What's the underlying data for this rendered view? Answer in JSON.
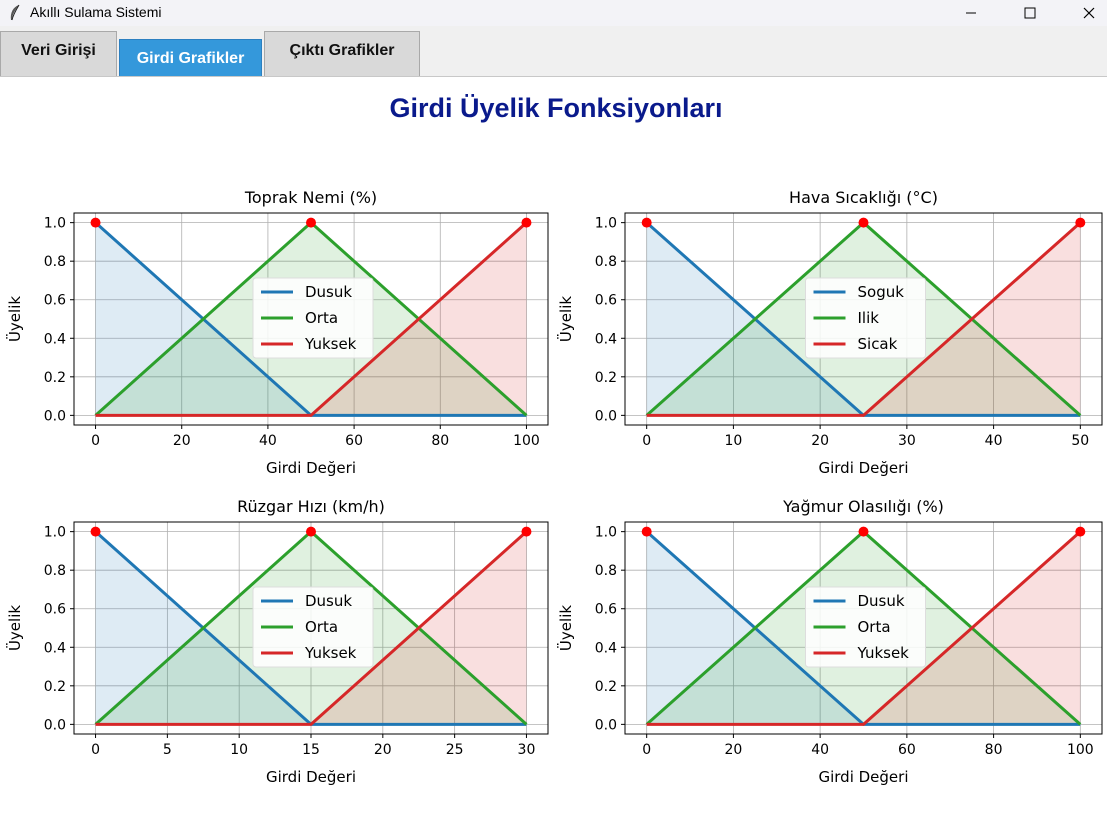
{
  "window": {
    "title": "Akıllı Sulama Sistemi",
    "app_icon": "feather-icon",
    "controls": [
      "minimize-icon",
      "maximize-icon",
      "close-icon"
    ]
  },
  "tabs": [
    {
      "label": "Veri Girişi",
      "active": false
    },
    {
      "label": "Girdi Grafikler",
      "active": true
    },
    {
      "label": "Çıktı Grafikler",
      "active": false
    }
  ],
  "page_title": "Girdi Üyelik Fonksiyonları",
  "colors": {
    "low": "#1f77b4",
    "mid": "#2ca02c",
    "high": "#d62728",
    "title": "#0a1a8c",
    "active_tab": "#3498db"
  },
  "chart_data": [
    {
      "type": "line",
      "title": "Toprak Nemi (%)",
      "xlabel": "Girdi Değeri",
      "ylabel": "Üyelik",
      "xlim": [
        -5,
        105
      ],
      "ylim": [
        -0.05,
        1.05
      ],
      "xticks": [
        0,
        20,
        40,
        60,
        80,
        100
      ],
      "yticks": [
        "0.0",
        "0.2",
        "0.4",
        "0.6",
        "0.8",
        "1.0"
      ],
      "legend_position": "center",
      "grid": true,
      "series": [
        {
          "name": "Dusuk",
          "x": [
            0,
            50,
            100
          ],
          "y": [
            1,
            0,
            0
          ]
        },
        {
          "name": "Orta",
          "x": [
            0,
            50,
            100
          ],
          "y": [
            0,
            1,
            0
          ]
        },
        {
          "name": "Yuksek",
          "x": [
            0,
            50,
            100
          ],
          "y": [
            0,
            0,
            1
          ]
        }
      ],
      "peaks": [
        [
          0,
          1
        ],
        [
          50,
          1
        ],
        [
          100,
          1
        ]
      ]
    },
    {
      "type": "line",
      "title": "Hava Sıcaklığı (°C)",
      "xlabel": "Girdi Değeri",
      "ylabel": "Üyelik",
      "xlim": [
        -2.5,
        52.5
      ],
      "ylim": [
        -0.05,
        1.05
      ],
      "xticks": [
        0,
        10,
        20,
        30,
        40,
        50
      ],
      "yticks": [
        "0.0",
        "0.2",
        "0.4",
        "0.6",
        "0.8",
        "1.0"
      ],
      "legend_position": "center",
      "grid": true,
      "series": [
        {
          "name": "Soguk",
          "x": [
            0,
            25,
            50
          ],
          "y": [
            1,
            0,
            0
          ]
        },
        {
          "name": "Ilik",
          "x": [
            0,
            25,
            50
          ],
          "y": [
            0,
            1,
            0
          ]
        },
        {
          "name": "Sicak",
          "x": [
            0,
            25,
            50
          ],
          "y": [
            0,
            0,
            1
          ]
        }
      ],
      "peaks": [
        [
          0,
          1
        ],
        [
          25,
          1
        ],
        [
          50,
          1
        ]
      ]
    },
    {
      "type": "line",
      "title": "Rüzgar Hızı (km/h)",
      "xlabel": "Girdi Değeri",
      "ylabel": "Üyelik",
      "xlim": [
        -1.5,
        31.5
      ],
      "ylim": [
        -0.05,
        1.05
      ],
      "xticks": [
        0,
        5,
        10,
        15,
        20,
        25,
        30
      ],
      "yticks": [
        "0.0",
        "0.2",
        "0.4",
        "0.6",
        "0.8",
        "1.0"
      ],
      "legend_position": "center",
      "grid": true,
      "series": [
        {
          "name": "Dusuk",
          "x": [
            0,
            15,
            30
          ],
          "y": [
            1,
            0,
            0
          ]
        },
        {
          "name": "Orta",
          "x": [
            0,
            15,
            30
          ],
          "y": [
            0,
            1,
            0
          ]
        },
        {
          "name": "Yuksek",
          "x": [
            0,
            15,
            30
          ],
          "y": [
            0,
            0,
            1
          ]
        }
      ],
      "peaks": [
        [
          0,
          1
        ],
        [
          15,
          1
        ],
        [
          30,
          1
        ]
      ]
    },
    {
      "type": "line",
      "title": "Yağmur Olasılığı (%)",
      "xlabel": "Girdi Değeri",
      "ylabel": "Üyelik",
      "xlim": [
        -5,
        105
      ],
      "ylim": [
        -0.05,
        1.05
      ],
      "xticks": [
        0,
        20,
        40,
        60,
        80,
        100
      ],
      "yticks": [
        "0.0",
        "0.2",
        "0.4",
        "0.6",
        "0.8",
        "1.0"
      ],
      "legend_position": "center",
      "grid": true,
      "series": [
        {
          "name": "Dusuk",
          "x": [
            0,
            50,
            100
          ],
          "y": [
            1,
            0,
            0
          ]
        },
        {
          "name": "Orta",
          "x": [
            0,
            50,
            100
          ],
          "y": [
            0,
            1,
            0
          ]
        },
        {
          "name": "Yuksek",
          "x": [
            0,
            50,
            100
          ],
          "y": [
            0,
            0,
            1
          ]
        }
      ],
      "peaks": [
        [
          0,
          1
        ],
        [
          50,
          1
        ],
        [
          100,
          1
        ]
      ]
    }
  ]
}
